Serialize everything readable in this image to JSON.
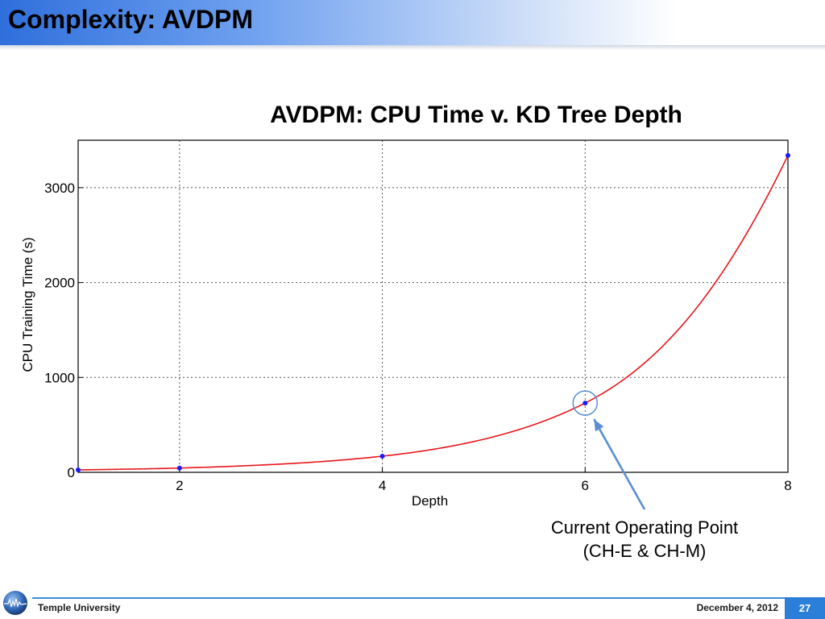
{
  "slide": {
    "title": "Complexity: AVDPM",
    "callout": {
      "line1": "Current Operating Point",
      "line2": "(CH-E & CH-M)"
    },
    "footer": {
      "organization": "Temple University",
      "date": "December 4, 2012",
      "page_number": "27"
    },
    "logo_icon": "globe-logo-icon"
  },
  "colors": {
    "header_start": "#2f6fdc",
    "curve": "#e8161c",
    "markers": "#1a1aff",
    "callout_circle": "#5b8fd0",
    "arrow": "#5b8fd0",
    "footer_accent": "#2b7fd8"
  },
  "chart_data": {
    "type": "line",
    "title": "AVDPM: CPU Time v. KD Tree Depth",
    "xlabel": "Depth",
    "ylabel": "CPU Training Time (s)",
    "xlim": [
      1,
      8
    ],
    "ylim": [
      0,
      3500
    ],
    "xticks": [
      2,
      4,
      6,
      8
    ],
    "yticks": [
      0,
      1000,
      2000,
      3000
    ],
    "grid": true,
    "series": [
      {
        "x": [
          1,
          2,
          4,
          6,
          8
        ],
        "y": [
          25,
          45,
          170,
          730,
          3340
        ]
      }
    ],
    "annotation": {
      "x": 6,
      "y": 730,
      "text": "Current Operating Point (CH-E & CH-M)"
    }
  }
}
